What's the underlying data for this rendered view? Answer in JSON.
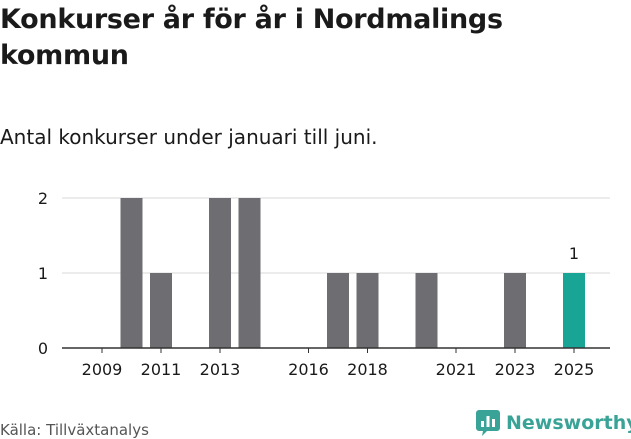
{
  "header": {
    "title": "Konkurser år för år i Nordmalings kommun",
    "subtitle": "Antal konkurser under januari till juni."
  },
  "footer": {
    "source": "Källa: Tillväxtanalys",
    "brand": "Newsworthy"
  },
  "colors": {
    "bar": "#6e6d72",
    "highlight": "#19a595",
    "grid": "#d9d9d9",
    "axis": "#333333",
    "brand": "#3aa397"
  },
  "chart_data": {
    "type": "bar",
    "categories": [
      "2009",
      "2010",
      "2011",
      "2012",
      "2013",
      "2014",
      "2015",
      "2016",
      "2017",
      "2018",
      "2019",
      "2020",
      "2021",
      "2022",
      "2023",
      "2024",
      "2025"
    ],
    "values": [
      0,
      2,
      1,
      0,
      2,
      2,
      0,
      0,
      1,
      1,
      0,
      1,
      0,
      0,
      1,
      0,
      1
    ],
    "x_tick_labels": [
      "2009",
      "2011",
      "2013",
      "2016",
      "2018",
      "2021",
      "2023",
      "2025"
    ],
    "y_ticks": [
      0,
      1,
      2
    ],
    "ylim": [
      0,
      2
    ],
    "highlight_category": "2025",
    "data_labels": [
      {
        "category": "2025",
        "label": "1"
      }
    ],
    "grid": true,
    "xlabel": "",
    "ylabel": ""
  }
}
